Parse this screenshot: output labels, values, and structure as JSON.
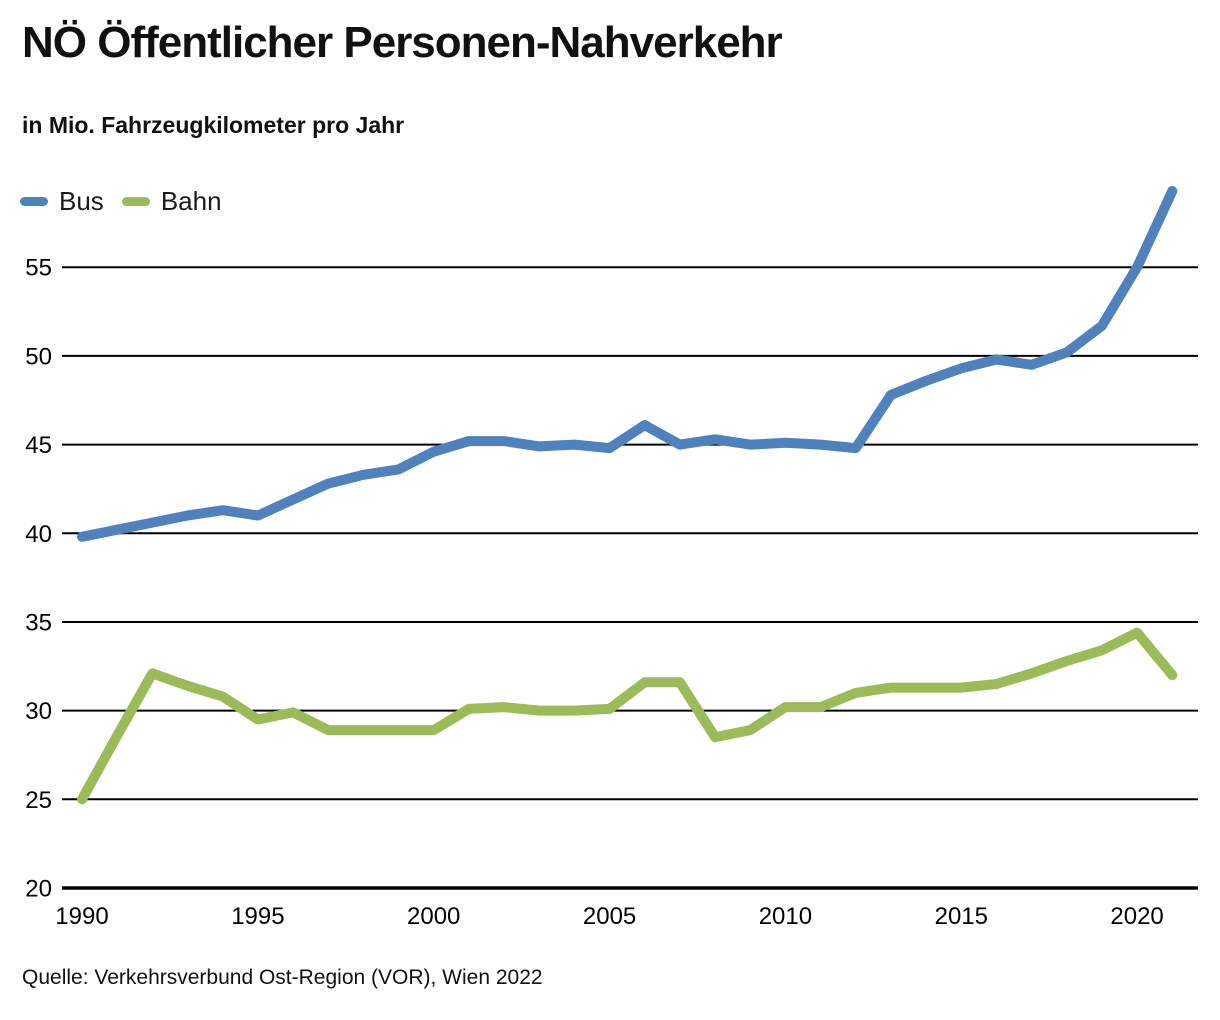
{
  "header": {
    "title": "NÖ Öffentlicher Personen-Nahverkehr",
    "subtitle": "in Mio. Fahrzeugkilometer pro Jahr"
  },
  "footer": {
    "source": "Quelle: Verkehrsverbund Ost-Region (VOR), Wien 2022"
  },
  "colors": {
    "bus": "#4f81bd",
    "bahn": "#9bbb59",
    "grid": "#000000",
    "text": "#111111",
    "background": "#ffffff"
  },
  "chart_data": {
    "type": "line",
    "title": "NÖ Öffentlicher Personen-Nahverkehr",
    "subtitle": "in Mio. Fahrzeugkilometer pro Jahr",
    "unit": "Mio. Fahrzeugkilometer pro Jahr",
    "grid": "horizontal",
    "legend_position": "top-left",
    "xlim": [
      1990,
      2021.7
    ],
    "ylim": [
      20,
      60.5
    ],
    "xticks": [
      1990,
      1995,
      2000,
      2005,
      2010,
      2015,
      2020
    ],
    "yticks": [
      20,
      25,
      30,
      35,
      40,
      45,
      50,
      55
    ],
    "x": [
      1990,
      1991,
      1992,
      1993,
      1994,
      1995,
      1996,
      1997,
      1998,
      1999,
      2000,
      2001,
      2002,
      2003,
      2004,
      2005,
      2006,
      2007,
      2008,
      2009,
      2010,
      2011,
      2012,
      2013,
      2014,
      2015,
      2016,
      2017,
      2018,
      2019,
      2020,
      2021
    ],
    "series": [
      {
        "name": "Bus",
        "color": "#4f81bd",
        "values": [
          39.8,
          40.2,
          40.6,
          41.0,
          41.3,
          41.0,
          41.9,
          42.8,
          43.3,
          43.6,
          44.6,
          45.2,
          45.2,
          44.9,
          45.0,
          44.8,
          46.1,
          45.0,
          45.3,
          45.0,
          45.1,
          45.0,
          44.8,
          47.8,
          48.6,
          49.3,
          49.8,
          49.5,
          50.2,
          51.7,
          55.0,
          59.3
        ]
      },
      {
        "name": "Bahn",
        "color": "#9bbb59",
        "values": [
          25.0,
          28.6,
          32.1,
          31.4,
          30.8,
          29.5,
          29.9,
          28.9,
          28.9,
          28.9,
          28.9,
          30.1,
          30.2,
          30.0,
          30.0,
          30.1,
          31.6,
          31.6,
          28.5,
          28.9,
          30.2,
          30.2,
          31.0,
          31.3,
          31.3,
          31.3,
          31.5,
          32.1,
          32.8,
          33.4,
          34.4,
          32.0
        ]
      }
    ]
  }
}
